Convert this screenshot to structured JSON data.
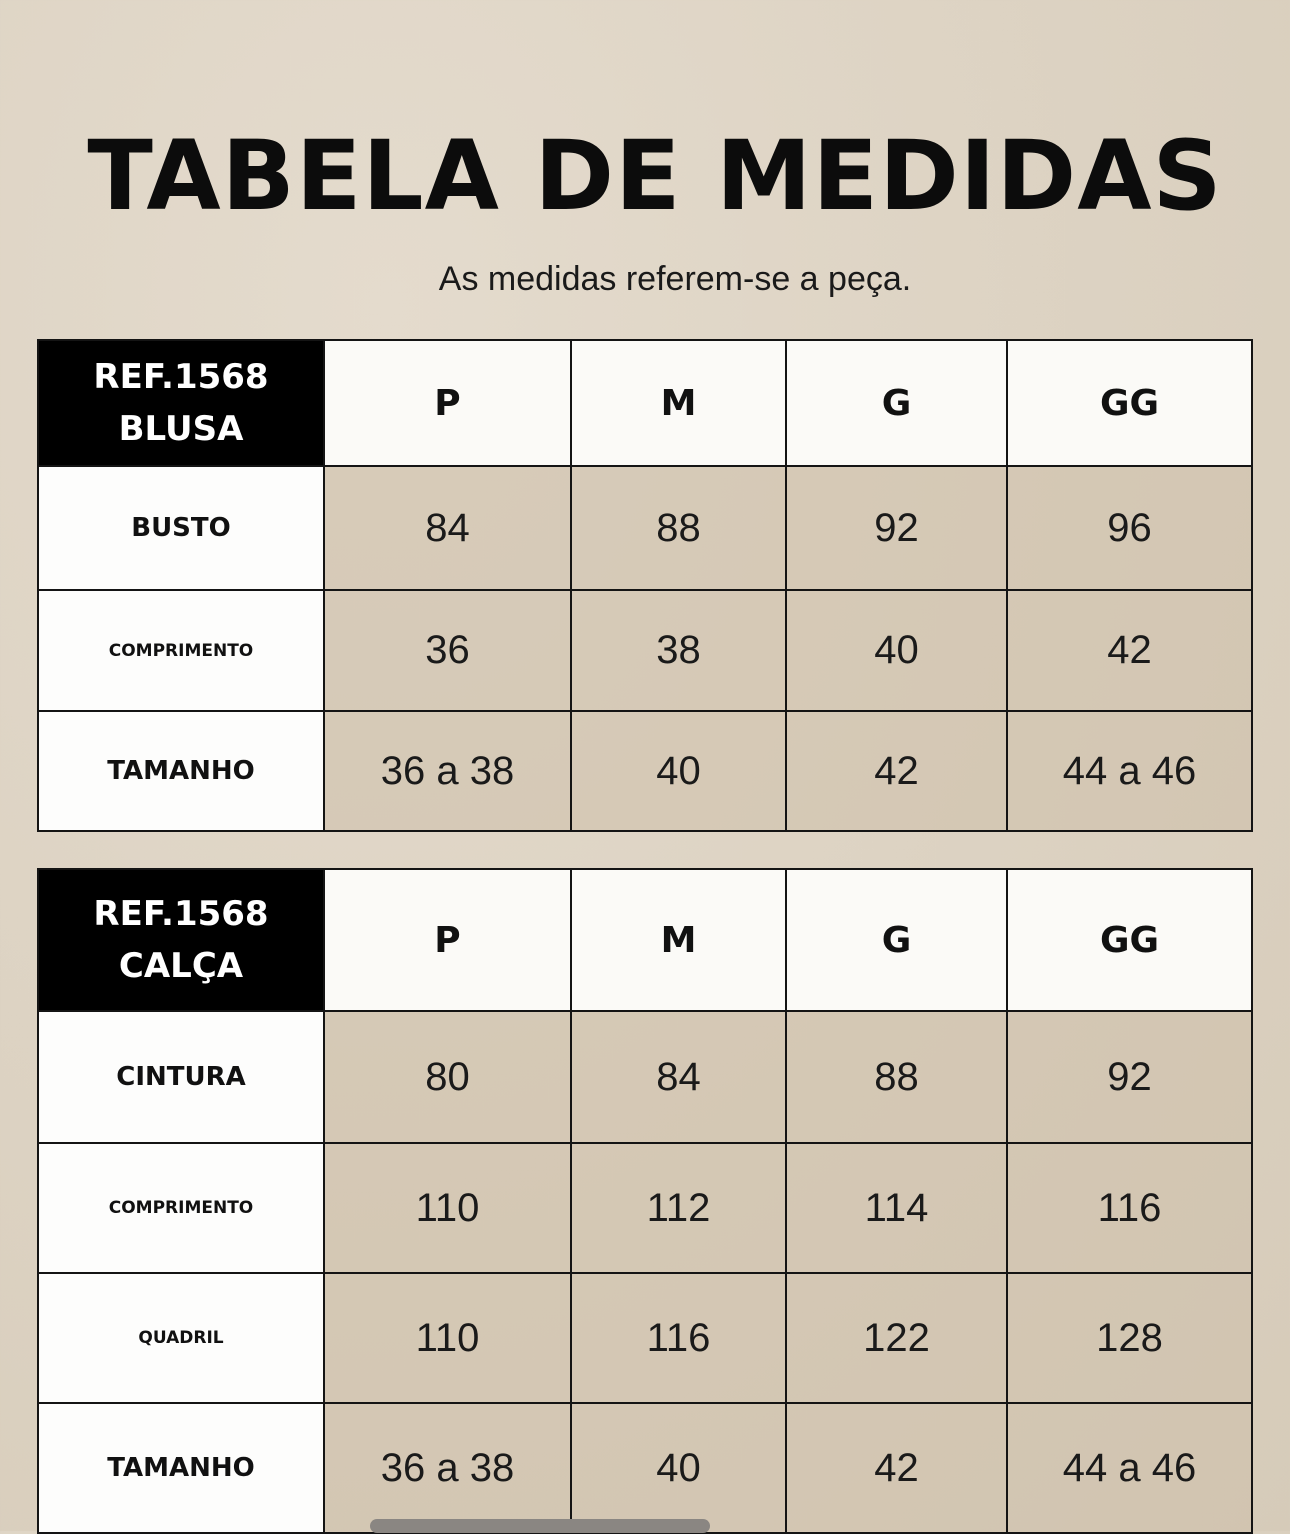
{
  "title": "TABELA DE MEDIDAS",
  "subtitle": "As medidas referem-se a peça.",
  "tables": [
    {
      "ref": "REF.1568",
      "product": "BLUSA",
      "sizes": [
        "P",
        "M",
        "G",
        "GG"
      ],
      "rows": [
        {
          "label": "BUSTO",
          "values": [
            "84",
            "88",
            "92",
            "96"
          ]
        },
        {
          "label": "COMPRIMENTO",
          "values": [
            "36",
            "38",
            "40",
            "42"
          ]
        },
        {
          "label": "TAMANHO",
          "values": [
            "36 a 38",
            "40",
            "42",
            "44 a 46"
          ]
        }
      ]
    },
    {
      "ref": "REF.1568",
      "product": "CALÇA",
      "sizes": [
        "P",
        "M",
        "G",
        "GG"
      ],
      "rows": [
        {
          "label": "CINTURA",
          "values": [
            "80",
            "84",
            "88",
            "92"
          ]
        },
        {
          "label": "COMPRIMENTO",
          "values": [
            "110",
            "112",
            "114",
            "116"
          ]
        },
        {
          "label": "QUADRIL",
          "values": [
            "110",
            "116",
            "122",
            "128"
          ]
        },
        {
          "label": "TAMANHO",
          "values": [
            "36 a 38",
            "40",
            "42",
            "44 a 46"
          ]
        }
      ]
    }
  ]
}
